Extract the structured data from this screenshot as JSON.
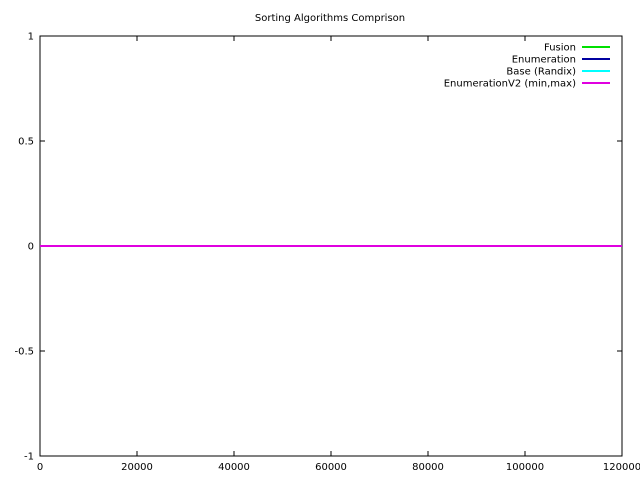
{
  "chart_data": {
    "type": "line",
    "title": "Sorting Algorithms Comprison",
    "xlabel": "",
    "ylabel": "",
    "xlim": [
      0,
      120000
    ],
    "ylim": [
      -1,
      1
    ],
    "x_ticks": [
      {
        "value": 0,
        "label": "0"
      },
      {
        "value": 20000,
        "label": "20000"
      },
      {
        "value": 40000,
        "label": "40000"
      },
      {
        "value": 60000,
        "label": "60000"
      },
      {
        "value": 80000,
        "label": "80000"
      },
      {
        "value": 100000,
        "label": "100000"
      },
      {
        "value": 120000,
        "label": "120000"
      }
    ],
    "y_ticks": [
      {
        "value": 1,
        "label": "1"
      },
      {
        "value": 0.5,
        "label": "0.5"
      },
      {
        "value": 0,
        "label": "0"
      },
      {
        "value": -0.5,
        "label": "-0.5"
      },
      {
        "value": -1,
        "label": "-1"
      }
    ],
    "grid": false,
    "legend_position": "top-right",
    "series": [
      {
        "name": "Fusion",
        "color": "#00e000",
        "x": [
          0,
          120000
        ],
        "y": [
          0,
          0
        ]
      },
      {
        "name": "Enumeration",
        "color": "#0000a0",
        "x": [
          0,
          120000
        ],
        "y": [
          0,
          0
        ]
      },
      {
        "name": "Base (Randix)",
        "color": "#00ffff",
        "x": [
          0,
          120000
        ],
        "y": [
          0,
          0
        ]
      },
      {
        "name": "EnumerationV2 (min,max)",
        "color": "#e000e0",
        "x": [
          0,
          120000
        ],
        "y": [
          0,
          0
        ]
      }
    ]
  }
}
